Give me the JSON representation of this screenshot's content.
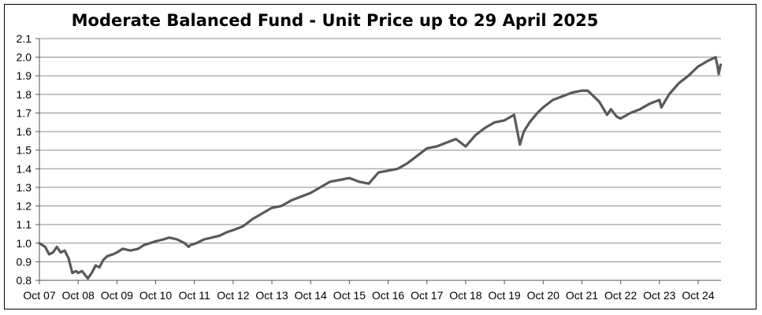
{
  "chart_data": {
    "type": "line",
    "title": "Moderate Balanced Fund - Unit Price up to 29 April 2025",
    "xlabel": "",
    "ylabel": "",
    "ylim": [
      0.8,
      2.1
    ],
    "yticks": [
      "0.8",
      "0.9",
      "1.0",
      "1.1",
      "1.2",
      "1.3",
      "1.4",
      "1.5",
      "1.6",
      "1.7",
      "1.8",
      "1.9",
      "2.0",
      "2.1"
    ],
    "xticks": [
      "Oct 07",
      "Oct 08",
      "Oct 09",
      "Oct 10",
      "Oct 11",
      "Oct 12",
      "Oct 13",
      "Oct 14",
      "Oct 15",
      "Oct 16",
      "Oct 17",
      "Oct 18",
      "Oct 19",
      "Oct 20",
      "Oct 21",
      "Oct 22",
      "Oct 23",
      "Oct 24"
    ],
    "grid": true,
    "line_color": "#595959",
    "series": [
      {
        "x": [
          2007.75,
          2007.9,
          2008.0,
          2008.1,
          2008.2,
          2008.3,
          2008.4,
          2008.5,
          2008.6,
          2008.7,
          2008.75,
          2008.85,
          2009.0,
          2009.1,
          2009.2,
          2009.3,
          2009.4,
          2009.5,
          2009.65,
          2009.75,
          2009.9,
          2010.1,
          2010.3,
          2010.45,
          2010.6,
          2010.75,
          2010.95,
          2011.1,
          2011.3,
          2011.5,
          2011.6,
          2011.65,
          2011.8,
          2012.0,
          2012.2,
          2012.4,
          2012.6,
          2012.75,
          2013.0,
          2013.25,
          2013.5,
          2013.75,
          2014.0,
          2014.25,
          2014.5,
          2014.75,
          2015.0,
          2015.25,
          2015.5,
          2015.75,
          2016.0,
          2016.25,
          2016.5,
          2016.75,
          2017.0,
          2017.25,
          2017.5,
          2017.75,
          2018.0,
          2018.25,
          2018.5,
          2018.75,
          2019.0,
          2019.25,
          2019.5,
          2019.75,
          2020.0,
          2020.15,
          2020.25,
          2020.4,
          2020.6,
          2020.75,
          2021.0,
          2021.25,
          2021.5,
          2021.75,
          2021.9,
          2022.0,
          2022.2,
          2022.4,
          2022.5,
          2022.65,
          2022.75,
          2023.0,
          2023.25,
          2023.5,
          2023.75,
          2023.8,
          2024.0,
          2024.25,
          2024.5,
          2024.75,
          2025.0,
          2025.1,
          2025.2,
          2025.25,
          2025.28,
          2025.33
        ],
        "y": [
          1.0,
          0.98,
          0.94,
          0.95,
          0.98,
          0.95,
          0.96,
          0.92,
          0.84,
          0.85,
          0.84,
          0.85,
          0.81,
          0.84,
          0.88,
          0.87,
          0.91,
          0.93,
          0.94,
          0.95,
          0.97,
          0.96,
          0.97,
          0.99,
          1.0,
          1.01,
          1.02,
          1.03,
          1.02,
          1.0,
          0.98,
          0.99,
          1.0,
          1.02,
          1.03,
          1.04,
          1.06,
          1.07,
          1.09,
          1.13,
          1.16,
          1.19,
          1.2,
          1.23,
          1.25,
          1.27,
          1.3,
          1.33,
          1.34,
          1.35,
          1.33,
          1.32,
          1.38,
          1.39,
          1.4,
          1.43,
          1.47,
          1.51,
          1.52,
          1.54,
          1.56,
          1.52,
          1.58,
          1.62,
          1.65,
          1.66,
          1.69,
          1.53,
          1.6,
          1.65,
          1.7,
          1.73,
          1.77,
          1.79,
          1.81,
          1.82,
          1.82,
          1.8,
          1.76,
          1.69,
          1.72,
          1.68,
          1.67,
          1.7,
          1.72,
          1.75,
          1.77,
          1.73,
          1.8,
          1.86,
          1.9,
          1.95,
          1.98,
          1.99,
          2.0,
          1.95,
          1.91,
          1.96
        ]
      }
    ]
  }
}
